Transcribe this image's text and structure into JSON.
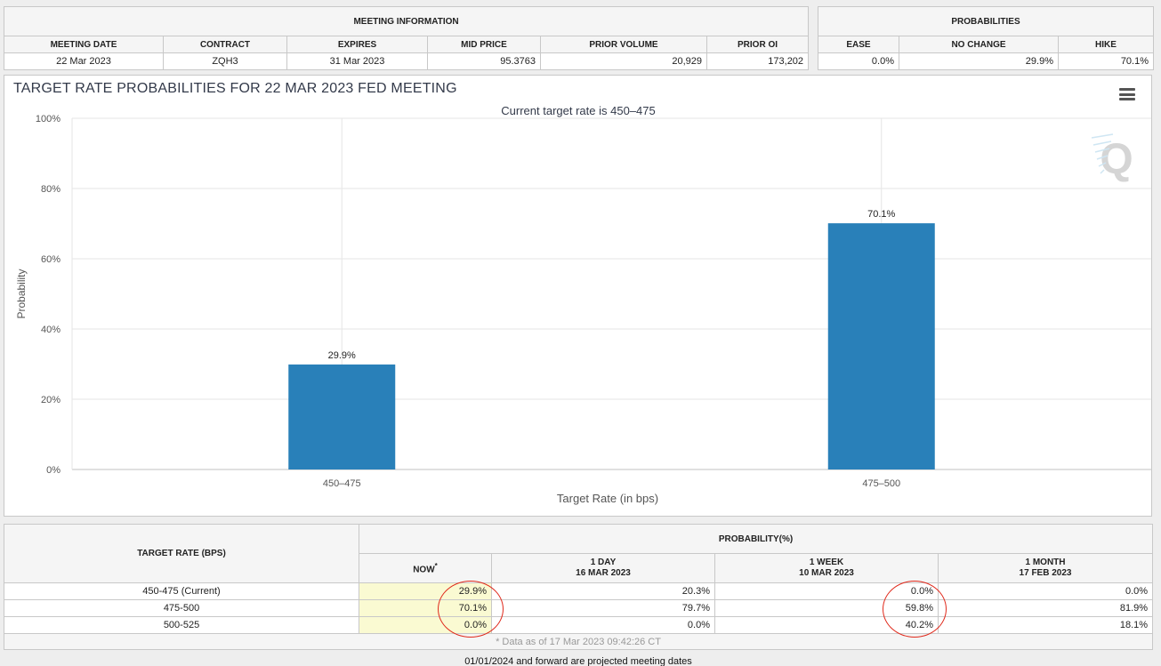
{
  "meeting_info": {
    "title": "MEETING INFORMATION",
    "columns": [
      "MEETING DATE",
      "CONTRACT",
      "EXPIRES",
      "MID PRICE",
      "PRIOR VOLUME",
      "PRIOR OI"
    ],
    "values": [
      "22 Mar 2023",
      "ZQH3",
      "31 Mar 2023",
      "95.3763",
      "20,929",
      "173,202"
    ]
  },
  "probabilities": {
    "title": "PROBABILITIES",
    "columns": [
      "EASE",
      "NO CHANGE",
      "HIKE"
    ],
    "values": [
      "0.0%",
      "29.9%",
      "70.1%"
    ]
  },
  "chart": {
    "title": "TARGET RATE PROBABILITIES FOR 22 MAR 2023 FED MEETING",
    "subtitle": "Current target rate is 450–475",
    "watermark": "Q",
    "menu_icon": "hamburger-menu-icon"
  },
  "chart_data": {
    "type": "bar",
    "title": "TARGET RATE PROBABILITIES FOR 22 MAR 2023 FED MEETING",
    "subtitle": "Current target rate is 450–475",
    "categories": [
      "450–475",
      "475–500"
    ],
    "values": [
      29.9,
      70.1
    ],
    "data_labels": [
      "29.9%",
      "70.1%"
    ],
    "xlabel": "Target Rate (in bps)",
    "ylabel": "Probability",
    "ylim": [
      0,
      100
    ],
    "yticks": [
      "0%",
      "20%",
      "40%",
      "60%",
      "80%",
      "100%"
    ],
    "bar_color": "#2980b9",
    "grid": true,
    "legend": "none"
  },
  "prob_table": {
    "rate_header": "TARGET RATE (BPS)",
    "prob_header": "PROBABILITY(%)",
    "columns": [
      {
        "line1": "NOW",
        "line2": "",
        "marker": "*"
      },
      {
        "line1": "1 DAY",
        "line2": "16 MAR 2023",
        "marker": ""
      },
      {
        "line1": "1 WEEK",
        "line2": "10 MAR 2023",
        "marker": ""
      },
      {
        "line1": "1 MONTH",
        "line2": "17 FEB 2023",
        "marker": ""
      }
    ],
    "rows": [
      {
        "rate": "450-475 (Current)",
        "values": [
          "29.9%",
          "20.3%",
          "0.0%",
          "0.0%"
        ]
      },
      {
        "rate": "475-500",
        "values": [
          "70.1%",
          "79.7%",
          "59.8%",
          "81.9%"
        ]
      },
      {
        "rate": "500-525",
        "values": [
          "0.0%",
          "0.0%",
          "40.2%",
          "18.1%"
        ]
      }
    ],
    "note": "* Data as of 17 Mar 2023 09:42:26 CT"
  },
  "footer": "01/01/2024 and forward are projected meeting dates",
  "colors": {
    "bar": "#2980b9",
    "annotation_circle": "#e02a1c",
    "now_highlight": "#fafad2",
    "title": "#333a4a"
  }
}
